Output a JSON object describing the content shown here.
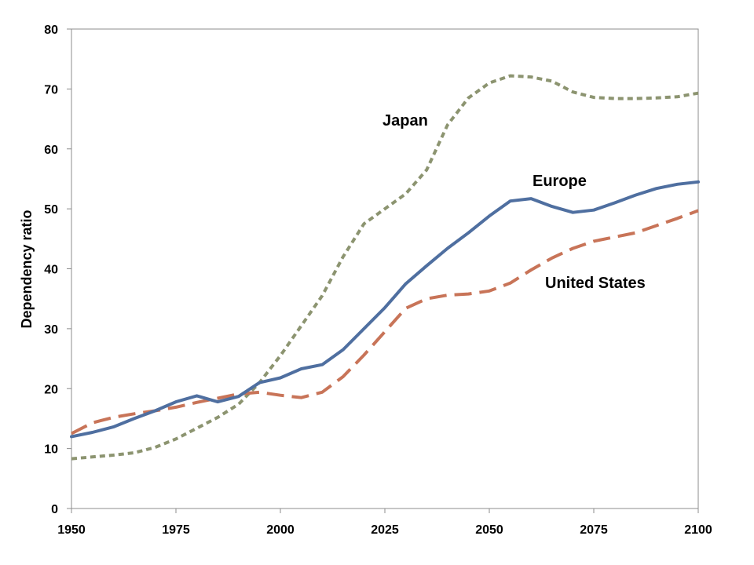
{
  "chart_data": {
    "type": "line",
    "title": "",
    "xlabel": "",
    "ylabel": "Dependency ratio",
    "xlim": [
      1950,
      2100
    ],
    "ylim": [
      0,
      80
    ],
    "x_ticks": [
      1950,
      1975,
      2000,
      2025,
      2050,
      2075,
      2100
    ],
    "y_ticks": [
      0,
      10,
      20,
      30,
      40,
      50,
      60,
      70,
      80
    ],
    "grid": false,
    "legend": "inline labels",
    "x": [
      1950,
      1955,
      1960,
      1965,
      1970,
      1975,
      1980,
      1985,
      1990,
      1995,
      2000,
      2005,
      2010,
      2015,
      2020,
      2025,
      2030,
      2035,
      2040,
      2045,
      2050,
      2055,
      2060,
      2065,
      2070,
      2075,
      2080,
      2085,
      2090,
      2095,
      2100
    ],
    "series": [
      {
        "name": "Japan",
        "color": "#8c9470",
        "style": "dotted",
        "values": [
          8.3,
          8.6,
          8.9,
          9.3,
          10.2,
          11.6,
          13.4,
          15.2,
          17.4,
          21.0,
          25.5,
          30.5,
          35.5,
          42.0,
          47.5,
          50.0,
          52.5,
          56.5,
          64.0,
          68.5,
          71.0,
          72.2,
          72.0,
          71.3,
          69.5,
          68.6,
          68.4,
          68.4,
          68.5,
          68.7,
          69.3
        ]
      },
      {
        "name": "Europe",
        "color": "#4f6fa0",
        "style": "solid",
        "values": [
          12.0,
          12.7,
          13.6,
          15.0,
          16.3,
          17.8,
          18.8,
          17.8,
          18.7,
          21.0,
          21.8,
          23.3,
          24.0,
          26.5,
          30.0,
          33.5,
          37.5,
          40.5,
          43.4,
          46.0,
          48.8,
          51.3,
          51.7,
          50.4,
          49.4,
          49.8,
          51.0,
          52.3,
          53.4,
          54.1,
          54.5
        ]
      },
      {
        "name": "United States",
        "color": "#c87458",
        "style": "dashed",
        "values": [
          12.5,
          14.3,
          15.2,
          15.8,
          16.3,
          16.9,
          17.7,
          18.4,
          19.1,
          19.4,
          18.9,
          18.5,
          19.4,
          22.0,
          25.6,
          29.5,
          33.4,
          35.0,
          35.6,
          35.8,
          36.3,
          37.6,
          39.8,
          41.8,
          43.4,
          44.6,
          45.3,
          46.0,
          47.2,
          48.4,
          49.7
        ]
      }
    ]
  }
}
